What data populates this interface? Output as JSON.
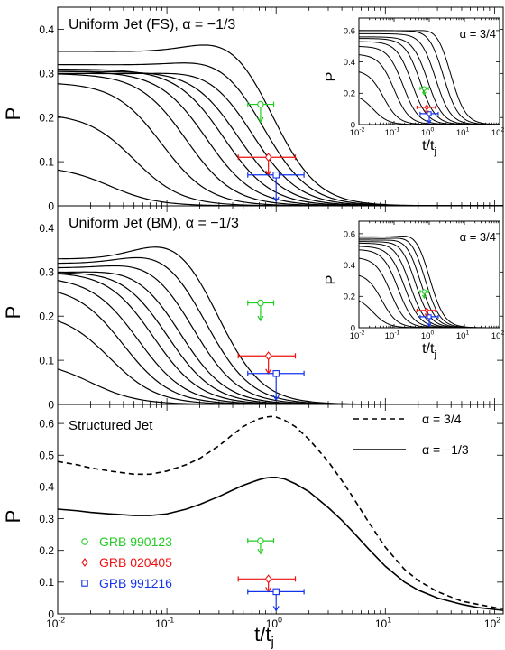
{
  "figure": {
    "xlabel_main": "t/t",
    "xlabel_sub": "j",
    "ylabel": "P"
  },
  "chart_data": [
    {
      "type": "line",
      "panel": "top",
      "title": "Uniform Jet (FS), α = −1/3",
      "xlabel": "",
      "ylabel": "P",
      "xscale": "log",
      "xlim": [
        0.01,
        120
      ],
      "ylim": [
        0,
        0.45
      ],
      "yticks": [
        0,
        0.1,
        0.2,
        0.3,
        0.4
      ],
      "ytick_labels": [
        "0",
        "0.1",
        "0.2",
        "0.3",
        "0.4"
      ],
      "xticks": [],
      "grid": false,
      "curve_params": [
        {
          "a": 0.35,
          "bump": 0.05,
          "tc": 0.9
        },
        {
          "a": 0.32,
          "bump": 0.03,
          "tc": 0.75
        },
        {
          "a": 0.3,
          "bump": 0.02,
          "tc": 0.6
        },
        {
          "a": 0.305,
          "bump": 0.005,
          "tc": 0.45
        },
        {
          "a": 0.31,
          "bump": 0.0,
          "tc": 0.33
        },
        {
          "a": 0.305,
          "bump": 0.0,
          "tc": 0.23
        },
        {
          "a": 0.3,
          "bump": 0.0,
          "tc": 0.15
        },
        {
          "a": 0.28,
          "bump": 0.0,
          "tc": 0.09
        },
        {
          "a": 0.21,
          "bump": 0.0,
          "tc": 0.05
        },
        {
          "a": 0.09,
          "bump": 0.0,
          "tc": 0.03
        }
      ],
      "data_points": [
        {
          "name": "GRB 990123",
          "x": 0.72,
          "y": 0.23,
          "xlo": 0.55,
          "xhi": 0.95,
          "ydown": 0.19,
          "color": "#22cc22",
          "marker": "circle"
        },
        {
          "name": "GRB 020405",
          "x": 0.85,
          "y": 0.11,
          "xlo": 0.45,
          "xhi": 1.5,
          "ydown": 0.07,
          "color": "#ee1111",
          "marker": "diamond"
        },
        {
          "name": "GRB 991216",
          "x": 1.0,
          "y": 0.07,
          "xlo": 0.55,
          "xhi": 1.8,
          "ydown": 0.01,
          "color": "#1133ee",
          "marker": "square"
        }
      ],
      "inset": {
        "label": "α = 3/4",
        "ylabel": "P",
        "xlabel_main": "t/t",
        "xlabel_sub": "j",
        "xlim": [
          0.01,
          100
        ],
        "ylim": [
          0,
          0.68
        ],
        "yticks": [
          0,
          0.2,
          0.4,
          0.6
        ],
        "ytick_labels": [
          "0",
          "0.2",
          "0.4",
          "0.6"
        ],
        "xticks": [
          0.01,
          0.1,
          1,
          10,
          100
        ],
        "xtick_exponents": [
          "-2",
          "-1",
          "0",
          "1",
          "2"
        ],
        "curve_params": [
          {
            "a": 0.6,
            "bump": 0.04,
            "tc": 4.0
          },
          {
            "a": 0.6,
            "bump": 0.02,
            "tc": 2.5
          },
          {
            "a": 0.58,
            "bump": 0.01,
            "tc": 1.5
          },
          {
            "a": 0.56,
            "bump": 0.0,
            "tc": 0.9
          },
          {
            "a": 0.55,
            "bump": 0.0,
            "tc": 0.55
          },
          {
            "a": 0.53,
            "bump": 0.0,
            "tc": 0.32
          },
          {
            "a": 0.5,
            "bump": 0.0,
            "tc": 0.18
          },
          {
            "a": 0.45,
            "bump": 0.0,
            "tc": 0.1
          },
          {
            "a": 0.35,
            "bump": 0.0,
            "tc": 0.05
          },
          {
            "a": 0.2,
            "bump": 0.0,
            "tc": 0.025
          }
        ],
        "data_points": [
          {
            "x": 0.72,
            "y": 0.23,
            "xlo": 0.55,
            "xhi": 0.95,
            "ydown": 0.19,
            "color": "#22cc22",
            "marker": "circle"
          },
          {
            "x": 0.85,
            "y": 0.11,
            "xlo": 0.45,
            "xhi": 1.5,
            "ydown": 0.07,
            "color": "#ee1111",
            "marker": "diamond"
          },
          {
            "x": 1.0,
            "y": 0.07,
            "xlo": 0.55,
            "xhi": 1.8,
            "ydown": 0.01,
            "color": "#1133ee",
            "marker": "square"
          }
        ]
      }
    },
    {
      "type": "line",
      "panel": "middle",
      "title": "Uniform Jet (BM), α = −1/3",
      "xlabel": "",
      "ylabel": "P",
      "xscale": "log",
      "xlim": [
        0.01,
        120
      ],
      "ylim": [
        0,
        0.45
      ],
      "yticks": [
        0,
        0.1,
        0.2,
        0.3,
        0.4
      ],
      "ytick_labels": [
        "0",
        "0.1",
        "0.2",
        "0.3",
        "0.4"
      ],
      "xticks": [],
      "grid": false,
      "curve_params": [
        {
          "a": 0.33,
          "bump": 0.065,
          "tc": 0.28
        },
        {
          "a": 0.32,
          "bump": 0.045,
          "tc": 0.22
        },
        {
          "a": 0.31,
          "bump": 0.03,
          "tc": 0.17
        },
        {
          "a": 0.3,
          "bump": 0.02,
          "tc": 0.13
        },
        {
          "a": 0.3,
          "bump": 0.01,
          "tc": 0.1
        },
        {
          "a": 0.3,
          "bump": 0.005,
          "tc": 0.075
        },
        {
          "a": 0.29,
          "bump": 0.0,
          "tc": 0.055
        },
        {
          "a": 0.27,
          "bump": 0.0,
          "tc": 0.04
        },
        {
          "a": 0.21,
          "bump": 0.0,
          "tc": 0.03
        },
        {
          "a": 0.1,
          "bump": 0.0,
          "tc": 0.02
        }
      ],
      "data_points": [
        {
          "name": "GRB 990123",
          "x": 0.72,
          "y": 0.23,
          "xlo": 0.55,
          "xhi": 0.95,
          "ydown": 0.19,
          "color": "#22cc22",
          "marker": "circle"
        },
        {
          "name": "GRB 020405",
          "x": 0.85,
          "y": 0.11,
          "xlo": 0.45,
          "xhi": 1.5,
          "ydown": 0.07,
          "color": "#ee1111",
          "marker": "diamond"
        },
        {
          "name": "GRB 991216",
          "x": 1.0,
          "y": 0.07,
          "xlo": 0.55,
          "xhi": 1.8,
          "ydown": 0.01,
          "color": "#1133ee",
          "marker": "square"
        }
      ],
      "inset": {
        "label": "α = 3/4",
        "ylabel": "P",
        "xlabel_main": "t/t",
        "xlabel_sub": "j",
        "xlim": [
          0.01,
          100
        ],
        "ylim": [
          0,
          0.68
        ],
        "yticks": [
          0,
          0.2,
          0.4,
          0.6
        ],
        "ytick_labels": [
          "0",
          "0.2",
          "0.4",
          "0.6"
        ],
        "xticks": [
          0.01,
          0.1,
          1,
          10,
          100
        ],
        "xtick_exponents": [
          "-2",
          "-1",
          "0",
          "1",
          "2"
        ],
        "curve_params": [
          {
            "a": 0.58,
            "bump": 0.05,
            "tc": 1.0
          },
          {
            "a": 0.57,
            "bump": 0.04,
            "tc": 0.75
          },
          {
            "a": 0.56,
            "bump": 0.03,
            "tc": 0.55
          },
          {
            "a": 0.55,
            "bump": 0.02,
            "tc": 0.4
          },
          {
            "a": 0.54,
            "bump": 0.01,
            "tc": 0.28
          },
          {
            "a": 0.52,
            "bump": 0.0,
            "tc": 0.2
          },
          {
            "a": 0.5,
            "bump": 0.0,
            "tc": 0.13
          },
          {
            "a": 0.45,
            "bump": 0.0,
            "tc": 0.08
          },
          {
            "a": 0.35,
            "bump": 0.0,
            "tc": 0.045
          },
          {
            "a": 0.2,
            "bump": 0.0,
            "tc": 0.025
          }
        ],
        "data_points": [
          {
            "x": 0.72,
            "y": 0.23,
            "xlo": 0.55,
            "xhi": 0.95,
            "ydown": 0.19,
            "color": "#22cc22",
            "marker": "circle"
          },
          {
            "x": 0.85,
            "y": 0.11,
            "xlo": 0.45,
            "xhi": 1.5,
            "ydown": 0.07,
            "color": "#ee1111",
            "marker": "diamond"
          },
          {
            "x": 1.0,
            "y": 0.07,
            "xlo": 0.55,
            "xhi": 1.8,
            "ydown": 0.01,
            "color": "#1133ee",
            "marker": "square"
          }
        ]
      }
    },
    {
      "type": "line",
      "panel": "bottom",
      "title": "Structured Jet",
      "xlabel": "t/t",
      "xlabel_sub": "j",
      "ylabel": "P",
      "xscale": "log",
      "xlim": [
        0.01,
        120
      ],
      "ylim": [
        0,
        0.66
      ],
      "yticks": [
        0,
        0.1,
        0.2,
        0.3,
        0.4,
        0.5,
        0.6
      ],
      "ytick_labels": [
        "0",
        "0.1",
        "0.2",
        "0.3",
        "0.4",
        "0.5",
        "0.6"
      ],
      "xticks": [
        0.01,
        0.1,
        1,
        10,
        100
      ],
      "xtick_exponents": [
        "-2",
        "-1",
        "0",
        "1",
        "2"
      ],
      "grid": false,
      "legend_placement": "top-right",
      "series": [
        {
          "name": "α = 3/4",
          "style": "dashed",
          "x": [
            0.01,
            0.015,
            0.02,
            0.03,
            0.05,
            0.07,
            0.1,
            0.15,
            0.2,
            0.3,
            0.4,
            0.5,
            0.6,
            0.7,
            0.8,
            0.9,
            1.0,
            1.2,
            1.5,
            2,
            3,
            4,
            5,
            7,
            10,
            15,
            20,
            30,
            50,
            70,
            100,
            120
          ],
          "y": [
            0.48,
            0.47,
            0.46,
            0.45,
            0.44,
            0.44,
            0.45,
            0.47,
            0.49,
            0.53,
            0.565,
            0.59,
            0.605,
            0.615,
            0.62,
            0.622,
            0.62,
            0.61,
            0.59,
            0.55,
            0.48,
            0.42,
            0.37,
            0.29,
            0.21,
            0.14,
            0.105,
            0.07,
            0.04,
            0.03,
            0.02,
            0.017
          ]
        },
        {
          "name": "α = −1/3",
          "style": "solid",
          "x": [
            0.01,
            0.015,
            0.02,
            0.03,
            0.05,
            0.07,
            0.1,
            0.15,
            0.2,
            0.3,
            0.4,
            0.5,
            0.6,
            0.7,
            0.8,
            0.9,
            1.0,
            1.2,
            1.5,
            2,
            3,
            4,
            5,
            7,
            10,
            15,
            20,
            30,
            50,
            70,
            100,
            120
          ],
          "y": [
            0.33,
            0.325,
            0.32,
            0.315,
            0.31,
            0.31,
            0.315,
            0.33,
            0.345,
            0.37,
            0.39,
            0.405,
            0.415,
            0.423,
            0.428,
            0.43,
            0.43,
            0.425,
            0.41,
            0.385,
            0.335,
            0.295,
            0.26,
            0.205,
            0.15,
            0.1,
            0.075,
            0.05,
            0.03,
            0.02,
            0.014,
            0.011
          ]
        }
      ],
      "data_points": [
        {
          "name": "GRB 990123",
          "x": 0.72,
          "y": 0.23,
          "xlo": 0.55,
          "xhi": 0.95,
          "ydown": 0.19,
          "color": "#22cc22",
          "marker": "circle"
        },
        {
          "name": "GRB 020405",
          "x": 0.85,
          "y": 0.11,
          "xlo": 0.45,
          "xhi": 1.5,
          "ydown": 0.07,
          "color": "#ee1111",
          "marker": "diamond"
        },
        {
          "name": "GRB 991216",
          "x": 1.0,
          "y": 0.07,
          "xlo": 0.55,
          "xhi": 1.8,
          "ydown": 0.01,
          "color": "#1133ee",
          "marker": "square"
        }
      ]
    }
  ]
}
